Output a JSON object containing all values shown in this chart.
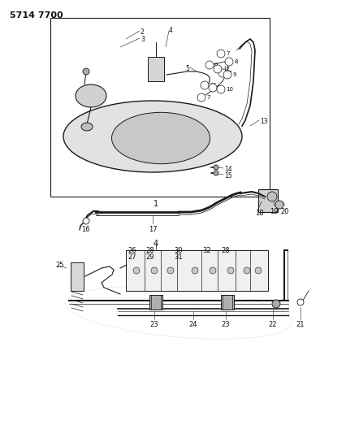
{
  "title": "5714 7700",
  "bg_color": "#f5f5f0",
  "line_color": "#1a1a1a",
  "text_color": "#111111",
  "figsize": [
    4.27,
    5.33
  ],
  "dpi": 100,
  "fig_w": 427,
  "fig_h": 533
}
